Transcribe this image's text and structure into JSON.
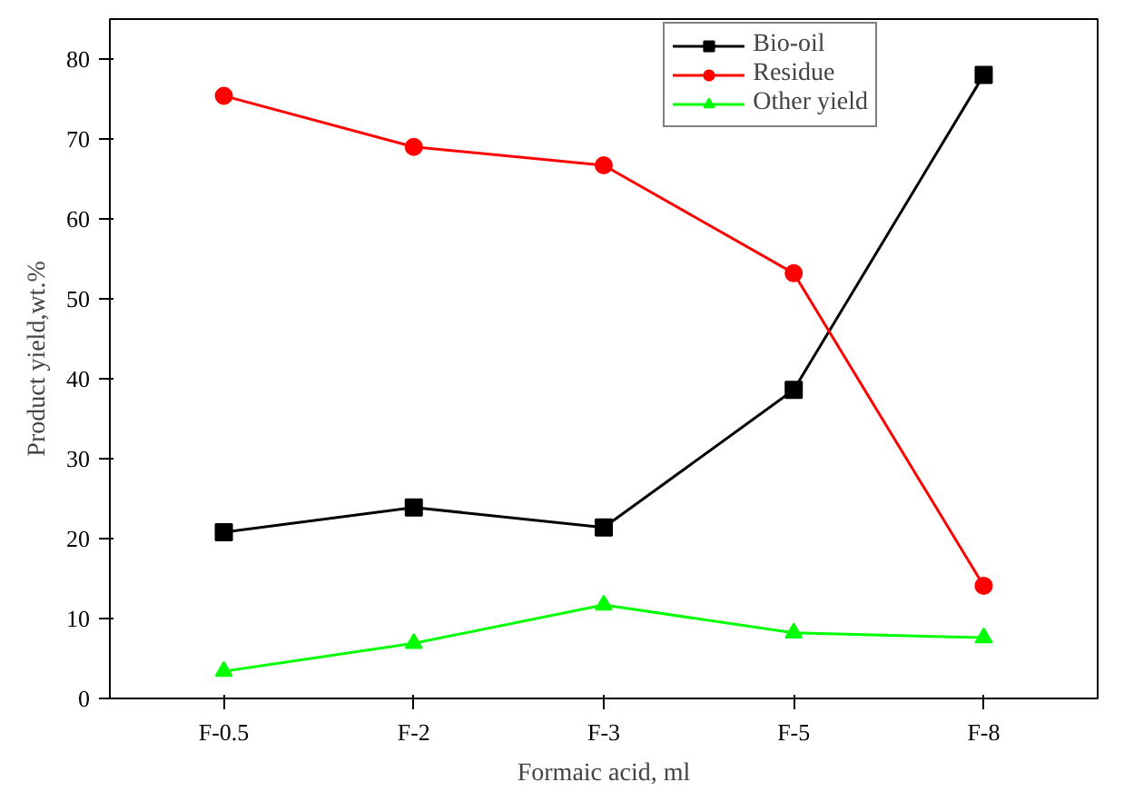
{
  "chart_data": {
    "type": "line",
    "xlabel": "Formaic acid, ml",
    "ylabel": "Product yield,wt.%",
    "categories": [
      "F-0.5",
      "F-2",
      "F-3",
      "F-5",
      "F-8"
    ],
    "ylim": [
      0,
      85
    ],
    "yticks": [
      0,
      10,
      20,
      30,
      40,
      50,
      60,
      70,
      80
    ],
    "grid": false,
    "legend": "top right",
    "line_style": "solid",
    "series": [
      {
        "name": "Bio-oil",
        "color": "#000000",
        "marker": "square",
        "values": [
          20.8,
          23.9,
          21.4,
          38.6,
          78.0
        ]
      },
      {
        "name": "Residue",
        "color": "#ff0000",
        "marker": "circle",
        "values": [
          75.4,
          69.0,
          66.7,
          53.2,
          14.1
        ]
      },
      {
        "name": "Other yield",
        "color": "#00ff00",
        "marker": "triangle",
        "values": [
          3.4,
          6.9,
          11.7,
          8.2,
          7.6
        ]
      }
    ]
  }
}
